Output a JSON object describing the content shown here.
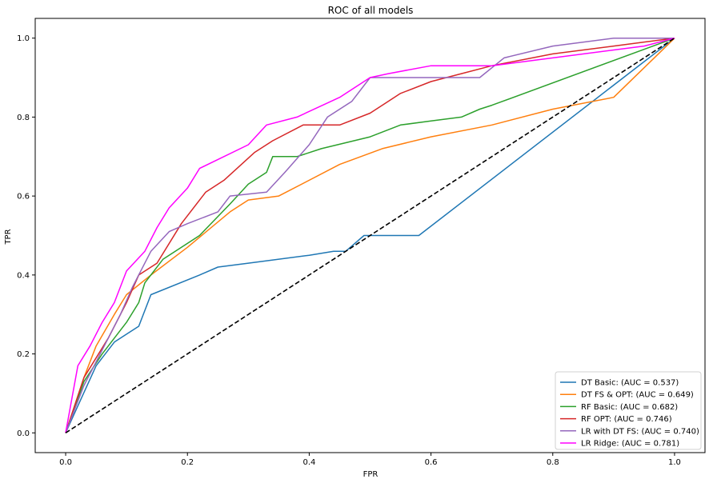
{
  "chart_data": {
    "type": "line",
    "title": "ROC of all models",
    "xlabel": "FPR",
    "ylabel": "TPR",
    "xlim": [
      -0.05,
      1.05
    ],
    "ylim": [
      -0.05,
      1.05
    ],
    "xticks": [
      "0.0",
      "0.2",
      "0.4",
      "0.6",
      "0.8",
      "1.0"
    ],
    "yticks": [
      "0.0",
      "0.2",
      "0.4",
      "0.6",
      "0.8",
      "1.0"
    ],
    "grid": false,
    "legend_position": "lower-right",
    "reference_line": {
      "style": "dashed",
      "color": "#000000",
      "x": [
        0,
        1
      ],
      "y": [
        0,
        1
      ]
    },
    "series": [
      {
        "name": "DT Basic: (AUC = 0.537)",
        "color": "#1f77b4",
        "x": [
          0,
          0.05,
          0.08,
          0.1,
          0.12,
          0.14,
          0.22,
          0.25,
          0.3,
          0.4,
          0.44,
          0.46,
          0.49,
          0.5,
          0.58,
          1.0
        ],
        "y": [
          0,
          0.17,
          0.23,
          0.25,
          0.27,
          0.35,
          0.4,
          0.42,
          0.43,
          0.45,
          0.46,
          0.46,
          0.5,
          0.5,
          0.5,
          1.0
        ]
      },
      {
        "name": "DT FS & OPT: (AUC = 0.649)",
        "color": "#ff7f0e",
        "x": [
          0,
          0.03,
          0.05,
          0.08,
          0.1,
          0.14,
          0.2,
          0.27,
          0.3,
          0.35,
          0.45,
          0.52,
          0.6,
          0.7,
          0.8,
          0.9,
          1.0
        ],
        "y": [
          0,
          0.14,
          0.22,
          0.3,
          0.35,
          0.4,
          0.47,
          0.56,
          0.59,
          0.6,
          0.68,
          0.72,
          0.75,
          0.78,
          0.82,
          0.85,
          1.0
        ]
      },
      {
        "name": "RF Basic: (AUC = 0.682)",
        "color": "#2ca02c",
        "x": [
          0,
          0.03,
          0.06,
          0.1,
          0.12,
          0.13,
          0.16,
          0.22,
          0.27,
          0.3,
          0.33,
          0.34,
          0.38,
          0.42,
          0.5,
          0.55,
          0.6,
          0.65,
          0.68,
          0.7,
          1.0
        ],
        "y": [
          0,
          0.13,
          0.2,
          0.28,
          0.33,
          0.38,
          0.44,
          0.5,
          0.58,
          0.63,
          0.66,
          0.7,
          0.7,
          0.72,
          0.75,
          0.78,
          0.79,
          0.8,
          0.82,
          0.83,
          1.0
        ]
      },
      {
        "name": "RF OPT: (AUC = 0.746)",
        "color": "#d62728",
        "x": [
          0,
          0.03,
          0.07,
          0.1,
          0.12,
          0.15,
          0.19,
          0.23,
          0.26,
          0.31,
          0.34,
          0.39,
          0.45,
          0.5,
          0.55,
          0.6,
          0.65,
          0.7,
          0.8,
          0.9,
          0.95,
          1.0
        ],
        "y": [
          0,
          0.14,
          0.24,
          0.33,
          0.4,
          0.43,
          0.53,
          0.61,
          0.64,
          0.71,
          0.74,
          0.78,
          0.78,
          0.81,
          0.86,
          0.89,
          0.91,
          0.93,
          0.96,
          0.98,
          0.99,
          1.0
        ]
      },
      {
        "name": "LR with DT FS: (AUC = 0.740)",
        "color": "#9467bd",
        "x": [
          0,
          0.03,
          0.06,
          0.09,
          0.11,
          0.14,
          0.17,
          0.2,
          0.25,
          0.27,
          0.33,
          0.36,
          0.4,
          0.43,
          0.47,
          0.5,
          0.55,
          0.6,
          0.68,
          0.72,
          0.8,
          0.9,
          1.0
        ],
        "y": [
          0,
          0.12,
          0.21,
          0.3,
          0.37,
          0.46,
          0.51,
          0.53,
          0.56,
          0.6,
          0.61,
          0.66,
          0.73,
          0.8,
          0.84,
          0.9,
          0.9,
          0.9,
          0.9,
          0.95,
          0.98,
          1.0,
          1.0
        ]
      },
      {
        "name": "LR Ridge: (AUC = 0.781)",
        "color": "#ff00ff",
        "x": [
          0,
          0.02,
          0.04,
          0.06,
          0.08,
          0.1,
          0.13,
          0.15,
          0.17,
          0.2,
          0.22,
          0.3,
          0.33,
          0.38,
          0.45,
          0.5,
          0.53,
          0.6,
          0.7,
          0.8,
          0.9,
          0.95,
          1.0
        ],
        "y": [
          0,
          0.17,
          0.22,
          0.28,
          0.33,
          0.41,
          0.46,
          0.52,
          0.57,
          0.62,
          0.67,
          0.73,
          0.78,
          0.8,
          0.85,
          0.9,
          0.91,
          0.93,
          0.93,
          0.95,
          0.97,
          0.98,
          1.0
        ]
      }
    ]
  }
}
